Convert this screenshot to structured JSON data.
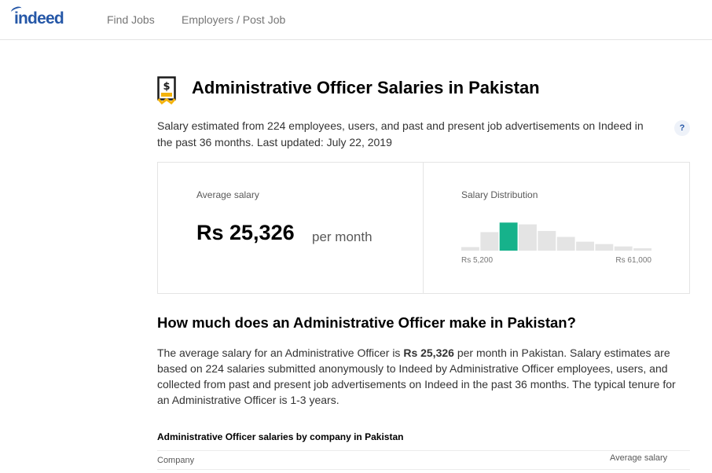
{
  "header": {
    "logo_text": "indeed",
    "nav": [
      {
        "label": "Find Jobs"
      },
      {
        "label": "Employers / Post Job"
      }
    ]
  },
  "page": {
    "title": "Administrative Officer Salaries in Pakistan",
    "summary": "Salary estimated from 224 employees, users, and past and present job advertisements on Indeed in the past 36 months. Last updated: July 22, 2019",
    "help_label": "?"
  },
  "salary_card": {
    "average_label": "Average salary",
    "average_value": "Rs 25,326",
    "average_unit": "per month",
    "distribution_label": "Salary Distribution",
    "range_min": "Rs 5,200",
    "range_max": "Rs 61,000",
    "bar_levels": [
      0.12,
      0.62,
      0.94,
      0.88,
      0.66,
      0.46,
      0.3,
      0.22,
      0.14,
      0.08
    ],
    "highlight_index": 2,
    "colors": {
      "bar": "#e4e4e4",
      "highlight": "#16b28b"
    }
  },
  "section": {
    "title": "How much does an Administrative Officer make in Pakistan?",
    "body_before": "The average salary for an Administrative Officer is ",
    "body_bold": "Rs 25,326",
    "body_after": " per month in Pakistan. Salary estimates are based on 224 salaries submitted anonymously to Indeed by Administrative Officer employees, users, and collected from past and present job advertisements on Indeed in the past 36 months. The typical tenure for an Administrative Officer is 1-3 years."
  },
  "company_table": {
    "title": "Administrative Officer salaries by company in Pakistan",
    "columns": [
      "Company",
      "Average salary"
    ]
  }
}
